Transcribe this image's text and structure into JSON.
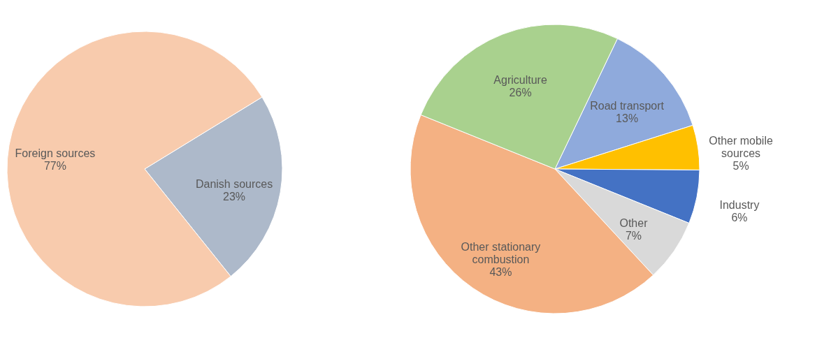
{
  "chart_data": [
    {
      "type": "pie",
      "categories": [
        "Danish sources",
        "Foreign sources"
      ],
      "values": [
        23,
        77
      ],
      "value_labels": [
        "23%",
        "77%"
      ],
      "colors": [
        "#adb9ca",
        "#f8cbad"
      ],
      "legend": false
    },
    {
      "type": "pie",
      "categories": [
        "Road transport",
        "Other mobile sources",
        "Industry",
        "Other",
        "Other stationary combustion",
        "Agriculture"
      ],
      "values": [
        13,
        5,
        6,
        7,
        43,
        26
      ],
      "value_labels": [
        "13%",
        "5%",
        "6%",
        "7%",
        "43%",
        "26%"
      ],
      "colors": [
        "#8faadc",
        "#ffc000",
        "#4472c4",
        "#d9d9d9",
        "#f4b183",
        "#a9d18e"
      ],
      "legend": false
    }
  ]
}
